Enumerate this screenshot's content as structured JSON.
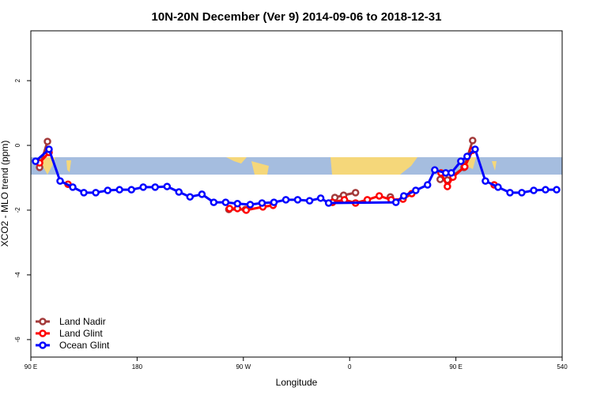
{
  "chart_data": {
    "type": "line",
    "title": "10N-20N December (Ver 9)   2014-09-06 to 2018-12-31",
    "x_label": "Longitude",
    "y_label": "XCO2 - MLO trend (ppm)",
    "xlim": [
      90,
      540
    ],
    "ylim": [
      -6.54,
      3.54
    ],
    "xticks": [
      {
        "value": 90,
        "label": "90 E"
      },
      180,
      {
        "value": 270,
        "label": "90 W"
      },
      {
        "value": 360,
        "label": "0"
      },
      {
        "value": 450,
        "label": "90 E"
      },
      540
    ],
    "yticks": [
      2,
      0,
      -2,
      -4,
      -6
    ],
    "legend": "bottomleft",
    "series": [
      {
        "name": "Land Nadir",
        "color": "#a33a3a",
        "x": [
          97.4,
          104.1,
          null,
          257.7,
          271.8,
          null,
          347.5,
          354.9,
          365.0,
          null,
          394.5,
          null,
          436.7,
          442.8,
          456.9,
          464.2
        ],
        "values": [
          -0.68,
          0.12,
          null,
          -1.98,
          -1.98,
          null,
          -1.61,
          -1.54,
          -1.46,
          null,
          -1.59,
          null,
          -1.05,
          -1.07,
          -0.68,
          0.15
        ]
      },
      {
        "name": "Land Glint",
        "color": "#ff0000",
        "x": [
          97.4,
          105.4,
          null,
          121.5,
          null,
          258.3,
          265.0,
          272.4,
          286.5,
          295.2,
          null,
          345.5,
          355.6,
          365.0,
          375.0,
          385.1,
          395.2,
          405.2,
          412.6,
          null,
          437.4,
          442.8,
          447.5,
          457.5,
          464.2,
          null,
          482.4
        ],
        "values": [
          -0.54,
          -0.22,
          null,
          -1.2,
          null,
          -1.95,
          -1.95,
          -2.0,
          -1.9,
          -1.85,
          null,
          -1.76,
          -1.68,
          -1.78,
          -1.68,
          -1.56,
          -1.68,
          -1.66,
          -1.49,
          null,
          -0.85,
          -1.27,
          -0.98,
          -0.66,
          -0.15,
          null,
          -1.22
        ]
      },
      {
        "name": "Ocean Glint",
        "color": "#0000ff",
        "x": [
          94.0,
          105.4,
          114.8,
          125.5,
          134.9,
          145.0,
          155.1,
          165.1,
          175.2,
          185.2,
          195.3,
          205.4,
          215.4,
          224.8,
          234.9,
          244.9,
          255.0,
          265.0,
          275.8,
          285.8,
          295.9,
          306.0,
          316.0,
          326.1,
          335.5,
          342.2,
          399.2,
          405.9,
          416.0,
          426.0,
          432.1,
          441.4,
          446.1,
          454.2,
          459.5,
          466.3,
          475.0,
          485.7,
          495.8,
          505.8,
          515.9,
          525.9,
          535.3
        ],
        "values": [
          -0.49,
          -0.12,
          -1.1,
          -1.29,
          -1.46,
          -1.46,
          -1.39,
          -1.37,
          -1.37,
          -1.29,
          -1.29,
          -1.27,
          -1.44,
          -1.59,
          -1.51,
          -1.76,
          -1.76,
          -1.8,
          -1.83,
          -1.78,
          -1.76,
          -1.68,
          -1.68,
          -1.71,
          -1.63,
          -1.78,
          -1.76,
          -1.56,
          -1.39,
          -1.22,
          -0.76,
          -0.85,
          -0.85,
          -0.49,
          -0.34,
          -0.12,
          -1.1,
          -1.29,
          -1.46,
          -1.46,
          -1.39,
          -1.37,
          -1.37
        ]
      }
    ]
  }
}
